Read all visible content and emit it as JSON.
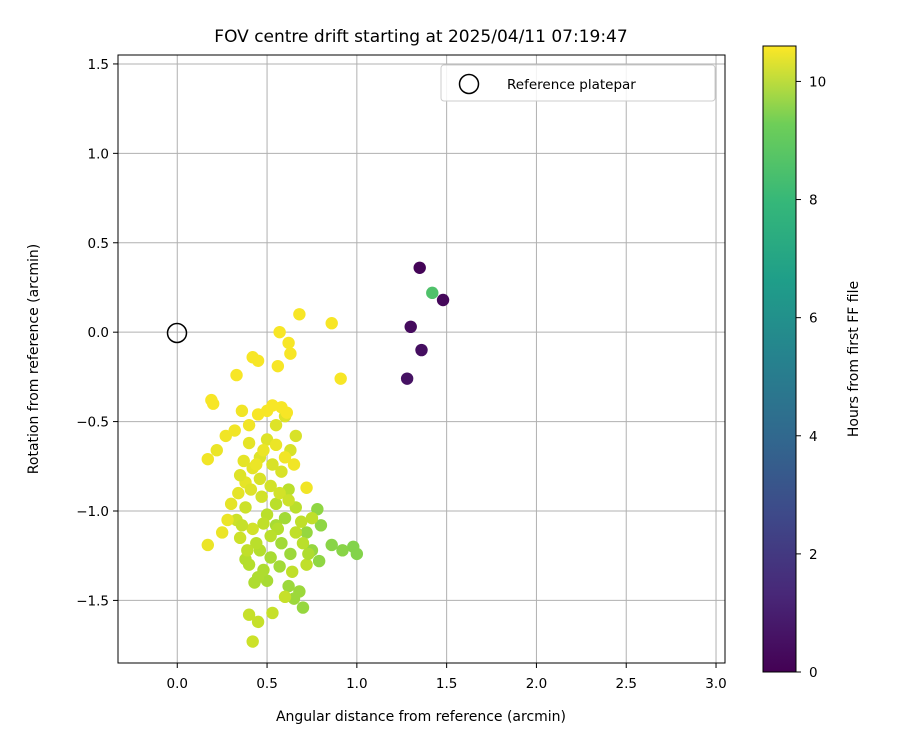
{
  "chart_data": {
    "type": "scatter",
    "title": "FOV centre drift starting at 2025/04/11 07:19:47",
    "xlabel": "Angular distance from reference (arcmin)",
    "ylabel": "Rotation from reference (arcmin)",
    "xlim": [
      -0.33,
      3.05
    ],
    "ylim": [
      -1.85,
      1.55
    ],
    "xticks": [
      0.0,
      0.5,
      1.0,
      1.5,
      2.0,
      2.5,
      3.0
    ],
    "xtick_labels": [
      "0.0",
      "0.5",
      "1.0",
      "1.5",
      "2.0",
      "2.5",
      "3.0"
    ],
    "yticks": [
      -1.5,
      -1.0,
      -0.5,
      0.0,
      0.5,
      1.0,
      1.5
    ],
    "ytick_labels": [
      "−1.5",
      "−1.0",
      "−0.5",
      "0.0",
      "0.5",
      "1.0",
      "1.5"
    ],
    "grid": true,
    "legend": {
      "placement": "top-right",
      "entries": [
        {
          "label": "Reference platepar",
          "marker": "open-circle"
        }
      ]
    },
    "reference_point": {
      "x": 0.0,
      "y": 0.0
    },
    "colorbar": {
      "label": "Hours from first FF file",
      "colormap": "viridis",
      "range": [
        0,
        10.6
      ],
      "ticks": [
        0,
        2,
        4,
        6,
        8,
        10
      ],
      "tick_labels": [
        "0",
        "2",
        "4",
        "6",
        "8",
        "10"
      ]
    },
    "series": [
      {
        "values_format": "[x, y, hours]",
        "points": [
          [
            1.35,
            0.36,
            0.1
          ],
          [
            1.48,
            0.18,
            0.2
          ],
          [
            1.3,
            0.03,
            0.3
          ],
          [
            1.36,
            -0.1,
            0.4
          ],
          [
            1.28,
            -0.26,
            0.5
          ],
          [
            1.42,
            0.22,
            7.6
          ],
          [
            0.98,
            -1.2,
            8.6
          ],
          [
            1.0,
            -1.24,
            8.6
          ],
          [
            0.92,
            -1.22,
            8.7
          ],
          [
            0.86,
            -1.19,
            8.7
          ],
          [
            0.78,
            -0.99,
            8.8
          ],
          [
            0.8,
            -1.08,
            8.8
          ],
          [
            0.79,
            -1.28,
            8.8
          ],
          [
            0.75,
            -1.22,
            8.9
          ],
          [
            0.72,
            -1.12,
            8.9
          ],
          [
            0.7,
            -1.54,
            8.9
          ],
          [
            0.68,
            -1.45,
            9.0
          ],
          [
            0.65,
            -1.49,
            9.0
          ],
          [
            0.62,
            -1.42,
            9.0
          ],
          [
            0.63,
            -1.24,
            9.0
          ],
          [
            0.6,
            -1.04,
            9.1
          ],
          [
            0.58,
            -1.18,
            9.1
          ],
          [
            0.57,
            -1.31,
            9.1
          ],
          [
            0.55,
            -1.08,
            9.2
          ],
          [
            0.52,
            -1.26,
            9.2
          ],
          [
            0.5,
            -1.39,
            9.2
          ],
          [
            0.48,
            -1.33,
            9.3
          ],
          [
            0.45,
            -1.37,
            9.3
          ],
          [
            0.43,
            -1.4,
            9.3
          ],
          [
            0.4,
            -1.3,
            9.4
          ],
          [
            0.38,
            -1.27,
            9.4
          ],
          [
            0.46,
            -1.22,
            9.4
          ],
          [
            0.5,
            -1.02,
            9.5
          ],
          [
            0.55,
            -0.96,
            9.5
          ],
          [
            0.62,
            -0.88,
            9.5
          ],
          [
            0.66,
            -0.98,
            9.5
          ],
          [
            0.69,
            -1.06,
            9.6
          ],
          [
            0.72,
            -1.3,
            9.6
          ],
          [
            0.75,
            -1.04,
            9.6
          ],
          [
            0.64,
            -1.34,
            9.6
          ],
          [
            0.6,
            -1.48,
            9.7
          ],
          [
            0.53,
            -1.57,
            9.7
          ],
          [
            0.45,
            -1.62,
            9.7
          ],
          [
            0.4,
            -1.58,
            9.7
          ],
          [
            0.42,
            -1.73,
            9.8
          ],
          [
            0.35,
            -1.15,
            9.8
          ],
          [
            0.33,
            -1.05,
            9.8
          ],
          [
            0.38,
            -0.98,
            9.8
          ],
          [
            0.42,
            -1.1,
            9.9
          ],
          [
            0.47,
            -0.92,
            9.9
          ],
          [
            0.52,
            -0.86,
            9.9
          ],
          [
            0.58,
            -0.78,
            10.0
          ],
          [
            0.63,
            -0.66,
            10.0
          ],
          [
            0.66,
            -0.58,
            10.0
          ],
          [
            0.6,
            -0.47,
            10.1
          ],
          [
            0.55,
            -0.52,
            10.1
          ],
          [
            0.5,
            -0.6,
            10.1
          ],
          [
            0.46,
            -0.7,
            10.1
          ],
          [
            0.42,
            -0.76,
            10.2
          ],
          [
            0.38,
            -0.84,
            10.2
          ],
          [
            0.34,
            -0.9,
            10.2
          ],
          [
            0.3,
            -0.96,
            10.2
          ],
          [
            0.28,
            -1.05,
            10.3
          ],
          [
            0.25,
            -1.12,
            10.3
          ],
          [
            0.17,
            -1.19,
            10.3
          ],
          [
            0.22,
            -0.66,
            10.3
          ],
          [
            0.17,
            -0.71,
            10.4
          ],
          [
            0.27,
            -0.58,
            10.4
          ],
          [
            0.32,
            -0.55,
            10.4
          ],
          [
            0.36,
            -0.44,
            10.4
          ],
          [
            0.4,
            -0.52,
            10.4
          ],
          [
            0.45,
            -0.46,
            10.5
          ],
          [
            0.5,
            -0.44,
            10.5
          ],
          [
            0.53,
            -0.41,
            10.5
          ],
          [
            0.58,
            -0.42,
            10.5
          ],
          [
            0.61,
            -0.45,
            10.5
          ],
          [
            0.2,
            -0.4,
            10.5
          ],
          [
            0.19,
            -0.38,
            10.5
          ],
          [
            0.33,
            -0.24,
            10.5
          ],
          [
            0.42,
            -0.14,
            10.5
          ],
          [
            0.45,
            -0.16,
            10.5
          ],
          [
            0.56,
            -0.19,
            10.5
          ],
          [
            0.57,
            0.0,
            10.5
          ],
          [
            0.62,
            -0.06,
            10.5
          ],
          [
            0.63,
            -0.12,
            10.5
          ],
          [
            0.68,
            0.1,
            10.5
          ],
          [
            0.86,
            0.05,
            10.5
          ],
          [
            0.91,
            -0.26,
            10.5
          ],
          [
            0.72,
            -0.87,
            10.4
          ],
          [
            0.65,
            -0.74,
            10.4
          ],
          [
            0.6,
            -0.7,
            10.4
          ],
          [
            0.55,
            -0.63,
            10.3
          ],
          [
            0.48,
            -0.66,
            10.3
          ],
          [
            0.44,
            -0.74,
            10.3
          ],
          [
            0.4,
            -0.62,
            10.2
          ],
          [
            0.37,
            -0.72,
            10.2
          ],
          [
            0.35,
            -0.8,
            10.1
          ],
          [
            0.41,
            -0.88,
            10.1
          ],
          [
            0.46,
            -0.82,
            10.0
          ],
          [
            0.53,
            -0.74,
            10.0
          ],
          [
            0.57,
            -0.9,
            9.9
          ],
          [
            0.62,
            -0.94,
            9.8
          ],
          [
            0.66,
            -1.12,
            9.6
          ],
          [
            0.7,
            -1.18,
            9.5
          ],
          [
            0.73,
            -1.24,
            9.3
          ],
          [
            0.56,
            -1.1,
            9.4
          ],
          [
            0.52,
            -1.14,
            9.5
          ],
          [
            0.48,
            -1.07,
            9.6
          ],
          [
            0.44,
            -1.18,
            9.5
          ],
          [
            0.39,
            -1.22,
            9.6
          ],
          [
            0.36,
            -1.08,
            9.7
          ]
        ]
      }
    ]
  }
}
